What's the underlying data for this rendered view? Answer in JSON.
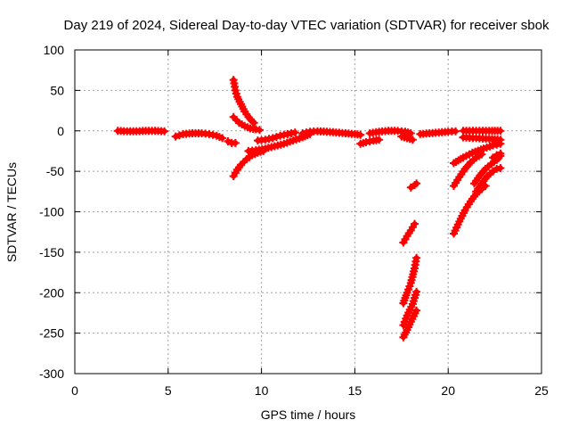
{
  "chart_data": {
    "type": "scatter",
    "title": "Day 219 of 2024, Sidereal Day-to-day VTEC variation (SDTVAR) for receiver sbok",
    "xlabel": "GPS time / hours",
    "ylabel": "SDTVAR / TECUs",
    "xlim": [
      0,
      25
    ],
    "ylim": [
      -300,
      100
    ],
    "xticks": [
      0,
      5,
      10,
      15,
      20,
      25
    ],
    "yticks": [
      -300,
      -250,
      -200,
      -150,
      -100,
      -50,
      0,
      50,
      100
    ],
    "xtick_labels": [
      "0",
      "5",
      "10",
      "15",
      "20",
      "25"
    ],
    "ytick_labels": [
      "-300",
      "-250",
      "-200",
      "-150",
      "-100",
      "-50",
      "0",
      "50",
      "100"
    ],
    "grid": true,
    "grid_style": "dotted",
    "marker": "plus",
    "series_color": "#ff0000",
    "series": [
      {
        "points": [
          [
            2.3,
            0
          ],
          [
            2.8,
            -0.5
          ],
          [
            3.3,
            -0.5
          ],
          [
            3.8,
            0
          ],
          [
            4.3,
            0
          ],
          [
            4.8,
            -0.5
          ]
        ]
      },
      {
        "points": [
          [
            5.4,
            -7
          ],
          [
            5.8,
            -4
          ],
          [
            6.3,
            -3
          ],
          [
            6.8,
            -3
          ],
          [
            7.2,
            -4
          ],
          [
            7.6,
            -6
          ],
          [
            7.9,
            -9
          ]
        ]
      },
      {
        "points": [
          [
            8.2,
            -13
          ],
          [
            8.4,
            -15
          ],
          [
            8.6,
            -15
          ]
        ]
      },
      {
        "points": [
          [
            8.5,
            63
          ],
          [
            8.6,
            50
          ],
          [
            8.7,
            42
          ],
          [
            8.9,
            33
          ],
          [
            9.1,
            24
          ],
          [
            9.3,
            17
          ],
          [
            9.5,
            12
          ],
          [
            9.6,
            10
          ]
        ]
      },
      {
        "points": [
          [
            8.5,
            17
          ],
          [
            8.8,
            10
          ],
          [
            9.1,
            6
          ],
          [
            9.4,
            3
          ],
          [
            9.7,
            2
          ],
          [
            9.9,
            1
          ]
        ]
      },
      {
        "points": [
          [
            8.5,
            -56
          ],
          [
            8.7,
            -48
          ],
          [
            8.9,
            -42
          ],
          [
            9.2,
            -35
          ],
          [
            9.5,
            -30
          ],
          [
            9.8,
            -27
          ],
          [
            10.1,
            -25
          ]
        ]
      },
      {
        "points": [
          [
            9.3,
            -25
          ],
          [
            9.7,
            -24
          ],
          [
            10.2,
            -22
          ],
          [
            10.7,
            -19
          ],
          [
            11.2,
            -16
          ],
          [
            11.7,
            -12
          ],
          [
            12.2,
            -8
          ],
          [
            12.6,
            -4
          ]
        ]
      },
      {
        "points": [
          [
            9.8,
            -12
          ],
          [
            10.2,
            -11
          ],
          [
            10.6,
            -9
          ],
          [
            11.0,
            -6
          ],
          [
            11.4,
            -4
          ],
          [
            11.8,
            -2
          ]
        ]
      },
      {
        "points": [
          [
            12.2,
            -3
          ],
          [
            12.6,
            -1
          ],
          [
            13.0,
            -0.5
          ],
          [
            13.5,
            -1
          ],
          [
            14.0,
            -2
          ],
          [
            14.5,
            -3
          ],
          [
            15.0,
            -4
          ],
          [
            15.3,
            -5
          ]
        ]
      },
      {
        "points": [
          [
            15.3,
            -16
          ],
          [
            15.6,
            -14
          ],
          [
            16.0,
            -12
          ],
          [
            16.3,
            -11
          ]
        ]
      },
      {
        "points": [
          [
            15.8,
            -3
          ],
          [
            16.3,
            -1
          ],
          [
            16.8,
            0
          ],
          [
            17.3,
            0
          ],
          [
            17.7,
            -1
          ],
          [
            18.0,
            -3
          ]
        ]
      },
      {
        "points": [
          [
            17.5,
            -7
          ],
          [
            17.8,
            -9
          ],
          [
            18.1,
            -11
          ]
        ]
      },
      {
        "points": [
          [
            18.0,
            -70
          ],
          [
            18.2,
            -67
          ],
          [
            18.3,
            -65
          ]
        ]
      },
      {
        "points": [
          [
            17.6,
            -138
          ],
          [
            17.8,
            -130
          ],
          [
            18.0,
            -123
          ],
          [
            18.2,
            -115
          ]
        ]
      },
      {
        "points": [
          [
            17.6,
            -213
          ],
          [
            17.8,
            -200
          ],
          [
            18.0,
            -188
          ],
          [
            18.2,
            -170
          ],
          [
            18.3,
            -157
          ]
        ]
      },
      {
        "points": [
          [
            17.6,
            -255
          ],
          [
            17.8,
            -246
          ],
          [
            18.0,
            -236
          ],
          [
            18.3,
            -222
          ]
        ]
      },
      {
        "points": [
          [
            17.6,
            -240
          ],
          [
            17.8,
            -228
          ],
          [
            18.1,
            -214
          ],
          [
            18.3,
            -199
          ]
        ]
      },
      {
        "points": [
          [
            18.5,
            -4
          ],
          [
            19.0,
            -3
          ],
          [
            19.5,
            -2
          ],
          [
            20.0,
            -1
          ],
          [
            20.4,
            -0.5
          ]
        ]
      },
      {
        "points": [
          [
            20.8,
            0
          ],
          [
            21.5,
            0
          ],
          [
            22.2,
            0
          ],
          [
            22.8,
            0
          ]
        ]
      },
      {
        "points": [
          [
            20.8,
            -8
          ],
          [
            21.5,
            -9
          ],
          [
            22.2,
            -10
          ],
          [
            22.8,
            -11
          ]
        ]
      },
      {
        "points": [
          [
            20.3,
            -40
          ],
          [
            20.8,
            -33
          ],
          [
            21.3,
            -27
          ],
          [
            21.9,
            -22
          ],
          [
            22.4,
            -18
          ],
          [
            22.8,
            -16
          ]
        ]
      },
      {
        "points": [
          [
            20.3,
            -68
          ],
          [
            20.6,
            -57
          ],
          [
            20.9,
            -47
          ],
          [
            21.2,
            -39
          ],
          [
            21.5,
            -33
          ],
          [
            21.8,
            -29
          ]
        ]
      },
      {
        "points": [
          [
            20.3,
            -127
          ],
          [
            20.6,
            -112
          ],
          [
            20.9,
            -98
          ],
          [
            21.2,
            -87
          ],
          [
            21.5,
            -78
          ],
          [
            21.8,
            -72
          ],
          [
            22.0,
            -68
          ]
        ]
      },
      {
        "points": [
          [
            21.4,
            -65
          ],
          [
            21.7,
            -55
          ],
          [
            22.0,
            -47
          ],
          [
            22.3,
            -41
          ],
          [
            22.6,
            -36
          ],
          [
            22.8,
            -31
          ]
        ]
      },
      {
        "points": [
          [
            22.4,
            -33
          ],
          [
            22.6,
            -30
          ],
          [
            22.8,
            -28
          ]
        ]
      },
      {
        "points": [
          [
            21.5,
            -75
          ],
          [
            21.8,
            -65
          ],
          [
            22.1,
            -56
          ],
          [
            22.4,
            -50
          ],
          [
            22.6,
            -47
          ],
          [
            22.8,
            -46
          ]
        ]
      }
    ]
  }
}
